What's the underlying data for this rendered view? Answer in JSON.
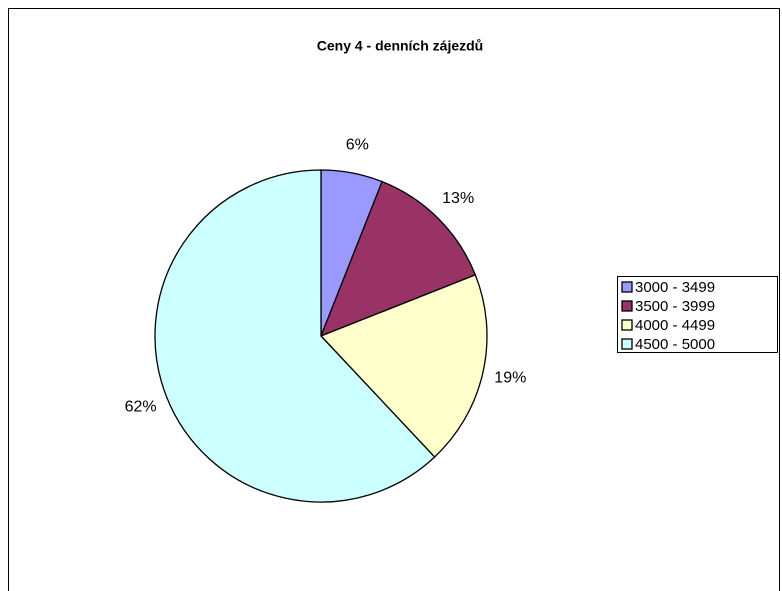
{
  "chart_data": {
    "type": "pie",
    "title": "Ceny 4 - denních zájezdů",
    "categories": [
      "3000 - 3499",
      "3500 - 3999",
      "4000 - 4499",
      "4500 - 5000"
    ],
    "values": [
      6,
      13,
      19,
      62
    ],
    "value_labels": [
      "6%",
      "13%",
      "19%",
      "62%"
    ],
    "colors": [
      "#9999ff",
      "#993366",
      "#ffffcc",
      "#ccffff"
    ],
    "legend": "right"
  }
}
